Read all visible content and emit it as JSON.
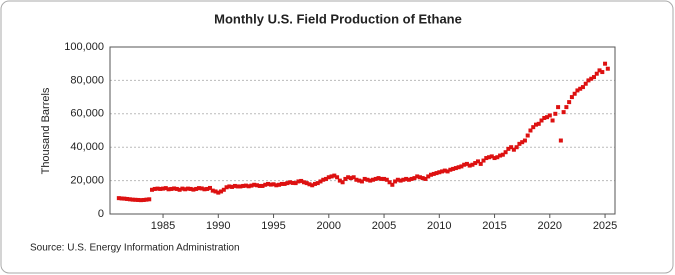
{
  "chart_data": {
    "type": "scatter",
    "title": "Monthly U.S. Field Production of Ethane",
    "y_label": "Thousand Barrels",
    "source": "Source: U.S. Energy Information Administration",
    "series": [
      {
        "name": "Ethane",
        "color": "#dd1111",
        "x": [
          1981,
          1981.25,
          1981.5,
          1981.75,
          1982,
          1982.25,
          1982.5,
          1982.75,
          1983,
          1983.25,
          1983.5,
          1983.75,
          1984,
          1984.25,
          1984.5,
          1984.75,
          1985,
          1985.25,
          1985.5,
          1985.75,
          1986,
          1986.25,
          1986.5,
          1986.75,
          1987,
          1987.25,
          1987.5,
          1987.75,
          1988,
          1988.25,
          1988.5,
          1988.75,
          1989,
          1989.25,
          1989.5,
          1989.75,
          1990,
          1990.25,
          1990.5,
          1990.75,
          1991,
          1991.25,
          1991.5,
          1991.75,
          1992,
          1992.25,
          1992.5,
          1992.75,
          1993,
          1993.25,
          1993.5,
          1993.75,
          1994,
          1994.25,
          1994.5,
          1994.75,
          1995,
          1995.25,
          1995.5,
          1995.75,
          1996,
          1996.25,
          1996.5,
          1996.75,
          1997,
          1997.25,
          1997.5,
          1997.75,
          1998,
          1998.25,
          1998.5,
          1998.75,
          1999,
          1999.25,
          1999.5,
          1999.75,
          2000,
          2000.25,
          2000.5,
          2000.75,
          2001,
          2001.25,
          2001.5,
          2001.75,
          2002,
          2002.25,
          2002.5,
          2002.75,
          2003,
          2003.25,
          2003.5,
          2003.75,
          2004,
          2004.25,
          2004.5,
          2004.75,
          2005,
          2005.25,
          2005.5,
          2005.75,
          2006,
          2006.25,
          2006.5,
          2006.75,
          2007,
          2007.25,
          2007.5,
          2007.75,
          2008,
          2008.25,
          2008.5,
          2008.75,
          2009,
          2009.25,
          2009.5,
          2009.75,
          2010,
          2010.25,
          2010.5,
          2010.75,
          2011,
          2011.25,
          2011.5,
          2011.75,
          2012,
          2012.25,
          2012.5,
          2012.75,
          2013,
          2013.25,
          2013.5,
          2013.75,
          2014,
          2014.25,
          2014.5,
          2014.75,
          2015,
          2015.25,
          2015.5,
          2015.75,
          2016,
          2016.25,
          2016.5,
          2016.75,
          2017,
          2017.25,
          2017.5,
          2017.75,
          2018,
          2018.25,
          2018.5,
          2018.75,
          2019,
          2019.25,
          2019.5,
          2019.75,
          2020,
          2020.25,
          2020.5,
          2020.75,
          2021,
          2021.25,
          2021.5,
          2021.75,
          2022,
          2022.25,
          2022.5,
          2022.75,
          2023,
          2023.25,
          2023.5,
          2023.75,
          2024,
          2024.25,
          2024.5,
          2024.75,
          2025,
          2025.25
        ],
        "values": [
          9500,
          9300,
          9200,
          9000,
          8800,
          8600,
          8500,
          8400,
          8300,
          8400,
          8600,
          8800,
          14500,
          15000,
          15200,
          15000,
          15200,
          15500,
          14800,
          15000,
          15300,
          15000,
          14500,
          15200,
          14800,
          15200,
          15000,
          14600,
          15000,
          15500,
          15300,
          14800,
          15000,
          15600,
          14000,
          13500,
          12800,
          13500,
          14500,
          16000,
          16500,
          16200,
          16800,
          16500,
          16500,
          16800,
          17000,
          16600,
          17000,
          17500,
          17200,
          16800,
          16800,
          17500,
          18000,
          17600,
          17800,
          17200,
          17500,
          18000,
          18000,
          18500,
          19000,
          18600,
          18500,
          19500,
          19800,
          19000,
          18500,
          17800,
          17200,
          18000,
          18500,
          19500,
          20500,
          21000,
          22000,
          22500,
          23000,
          22000,
          20000,
          19000,
          21000,
          22000,
          21500,
          22000,
          20500,
          20000,
          19500,
          21000,
          20500,
          20000,
          20500,
          21000,
          21500,
          21000,
          21000,
          20500,
          19000,
          17500,
          19500,
          20500,
          20000,
          20500,
          21000,
          20500,
          21000,
          21500,
          22500,
          22000,
          21500,
          21000,
          22500,
          23500,
          24000,
          24500,
          25000,
          25500,
          26000,
          25500,
          26500,
          27000,
          27500,
          28000,
          28500,
          29500,
          30000,
          29000,
          29500,
          30500,
          31500,
          30000,
          32000,
          33500,
          34000,
          34500,
          33500,
          34000,
          35000,
          35500,
          37000,
          39000,
          40000,
          38500,
          40000,
          42000,
          43000,
          44000,
          47000,
          50000,
          52000,
          53500,
          54000,
          56000,
          57500,
          58000,
          59000,
          56000,
          60000,
          64000,
          44000,
          61000,
          64000,
          67000,
          70000,
          72000,
          74000,
          75000,
          76000,
          78000,
          80000,
          81000,
          82000,
          84000,
          86000,
          85000,
          90000,
          87000
        ]
      }
    ],
    "xlim": [
      1980.2,
      2025.9
    ],
    "ylim": [
      0,
      100000
    ],
    "xticks": [
      1985,
      1990,
      1995,
      2000,
      2005,
      2010,
      2015,
      2020,
      2025
    ],
    "yticks": [
      0,
      {
        "value": 20000,
        "label": "20,000"
      },
      {
        "value": 40000,
        "label": "40,000"
      },
      {
        "value": 60000,
        "label": "60,000"
      },
      {
        "value": 80000,
        "label": "80,000"
      },
      {
        "value": 100000,
        "label": "100,000"
      }
    ],
    "grid": true
  }
}
